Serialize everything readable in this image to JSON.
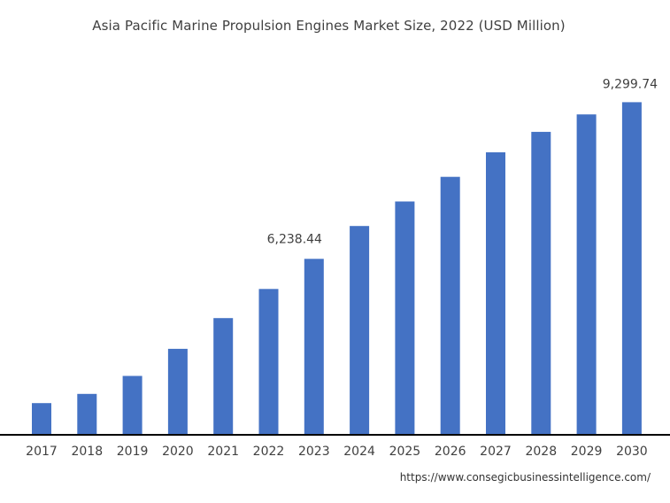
{
  "title": "Asia Pacific Marine Propulsion Engines Market Size, 2022 (USD Million)",
  "source": "https://www.consegicbusinessintelligence.com/",
  "colors": {
    "bar": "#4472C4",
    "axis": "#000000",
    "text": "#404040"
  },
  "chart_data": {
    "type": "bar",
    "title": "Asia Pacific Marine Propulsion Engines Market Size, 2022 (USD Million)",
    "categories": [
      "2017",
      "2018",
      "2019",
      "2020",
      "2021",
      "2022",
      "2023",
      "2024",
      "2025",
      "2026",
      "2027",
      "2028",
      "2029",
      "2030"
    ],
    "values": [
      3420,
      3600,
      3950,
      4480,
      5080,
      5650,
      6238.44,
      6880,
      7360,
      7840,
      8320,
      8720,
      9060,
      9299.74
    ],
    "data_labels": [
      "",
      "",
      "",
      "",
      "",
      "",
      "6,238.44",
      "",
      "",
      "",
      "",
      "",
      "",
      "9,299.74"
    ],
    "xlabel": "",
    "ylabel": "",
    "ylim": [
      2800,
      9600
    ],
    "grid": false,
    "legend": "none"
  }
}
